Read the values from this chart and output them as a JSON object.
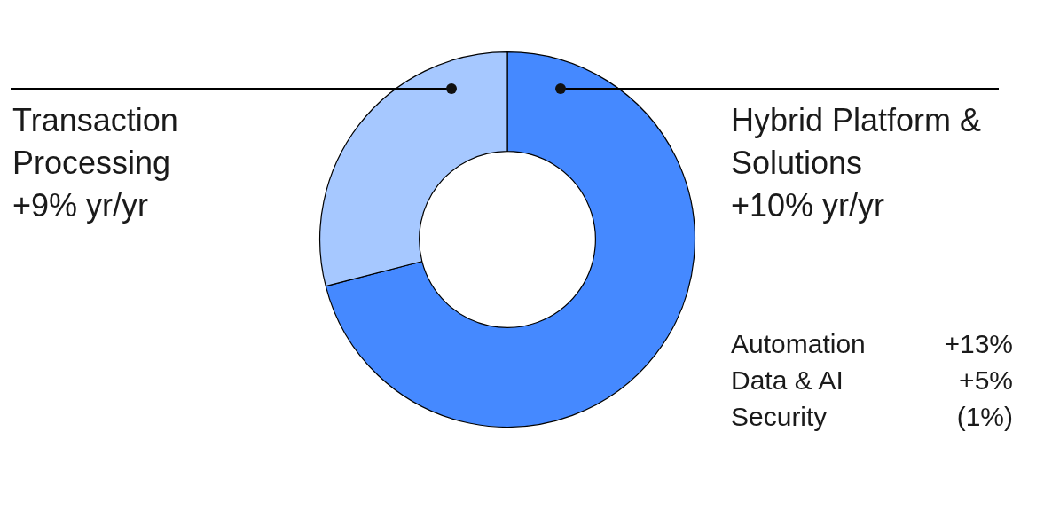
{
  "chart_data": {
    "type": "donut",
    "categories": [
      "Hybrid Platform & Solutions",
      "Transaction Processing"
    ],
    "values": [
      71,
      29
    ],
    "colors": [
      "#4589ff",
      "#a6c8ff"
    ],
    "annotations": [
      "+10% yr/yr",
      "+9% yr/yr",
      "Automation +13%",
      "Data & AI +5%",
      "Security (1%)"
    ]
  }
}
